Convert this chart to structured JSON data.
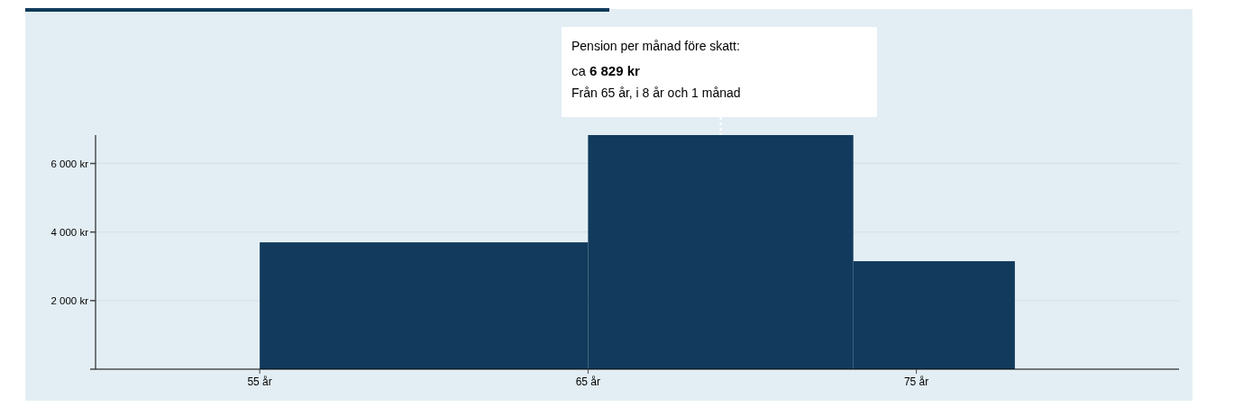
{
  "chart_data": {
    "type": "histogram",
    "bins": [
      55,
      65,
      73.08,
      78
    ],
    "values": [
      3700,
      6829,
      3150
    ],
    "color": "#113a5c",
    "xlim": [
      50,
      83
    ],
    "xticks": [
      {
        "value": 55,
        "label": "55 år"
      },
      {
        "value": 65,
        "label": "65 år"
      },
      {
        "value": 75,
        "label": "75 år"
      }
    ],
    "ylim": [
      0,
      6829
    ],
    "yticks": [
      {
        "value": 0,
        "label": null
      },
      {
        "value": 2000,
        "label": "2 000 kr"
      },
      {
        "value": 4000,
        "label": "4 000 kr"
      },
      {
        "value": 6000,
        "label": "6 000 kr"
      }
    ],
    "grid": "y",
    "annotations": [
      "Pension per månad före skatt:",
      "ca 6 829 kr",
      "Från 65 år, i 8 år och 1 månad"
    ]
  }
}
